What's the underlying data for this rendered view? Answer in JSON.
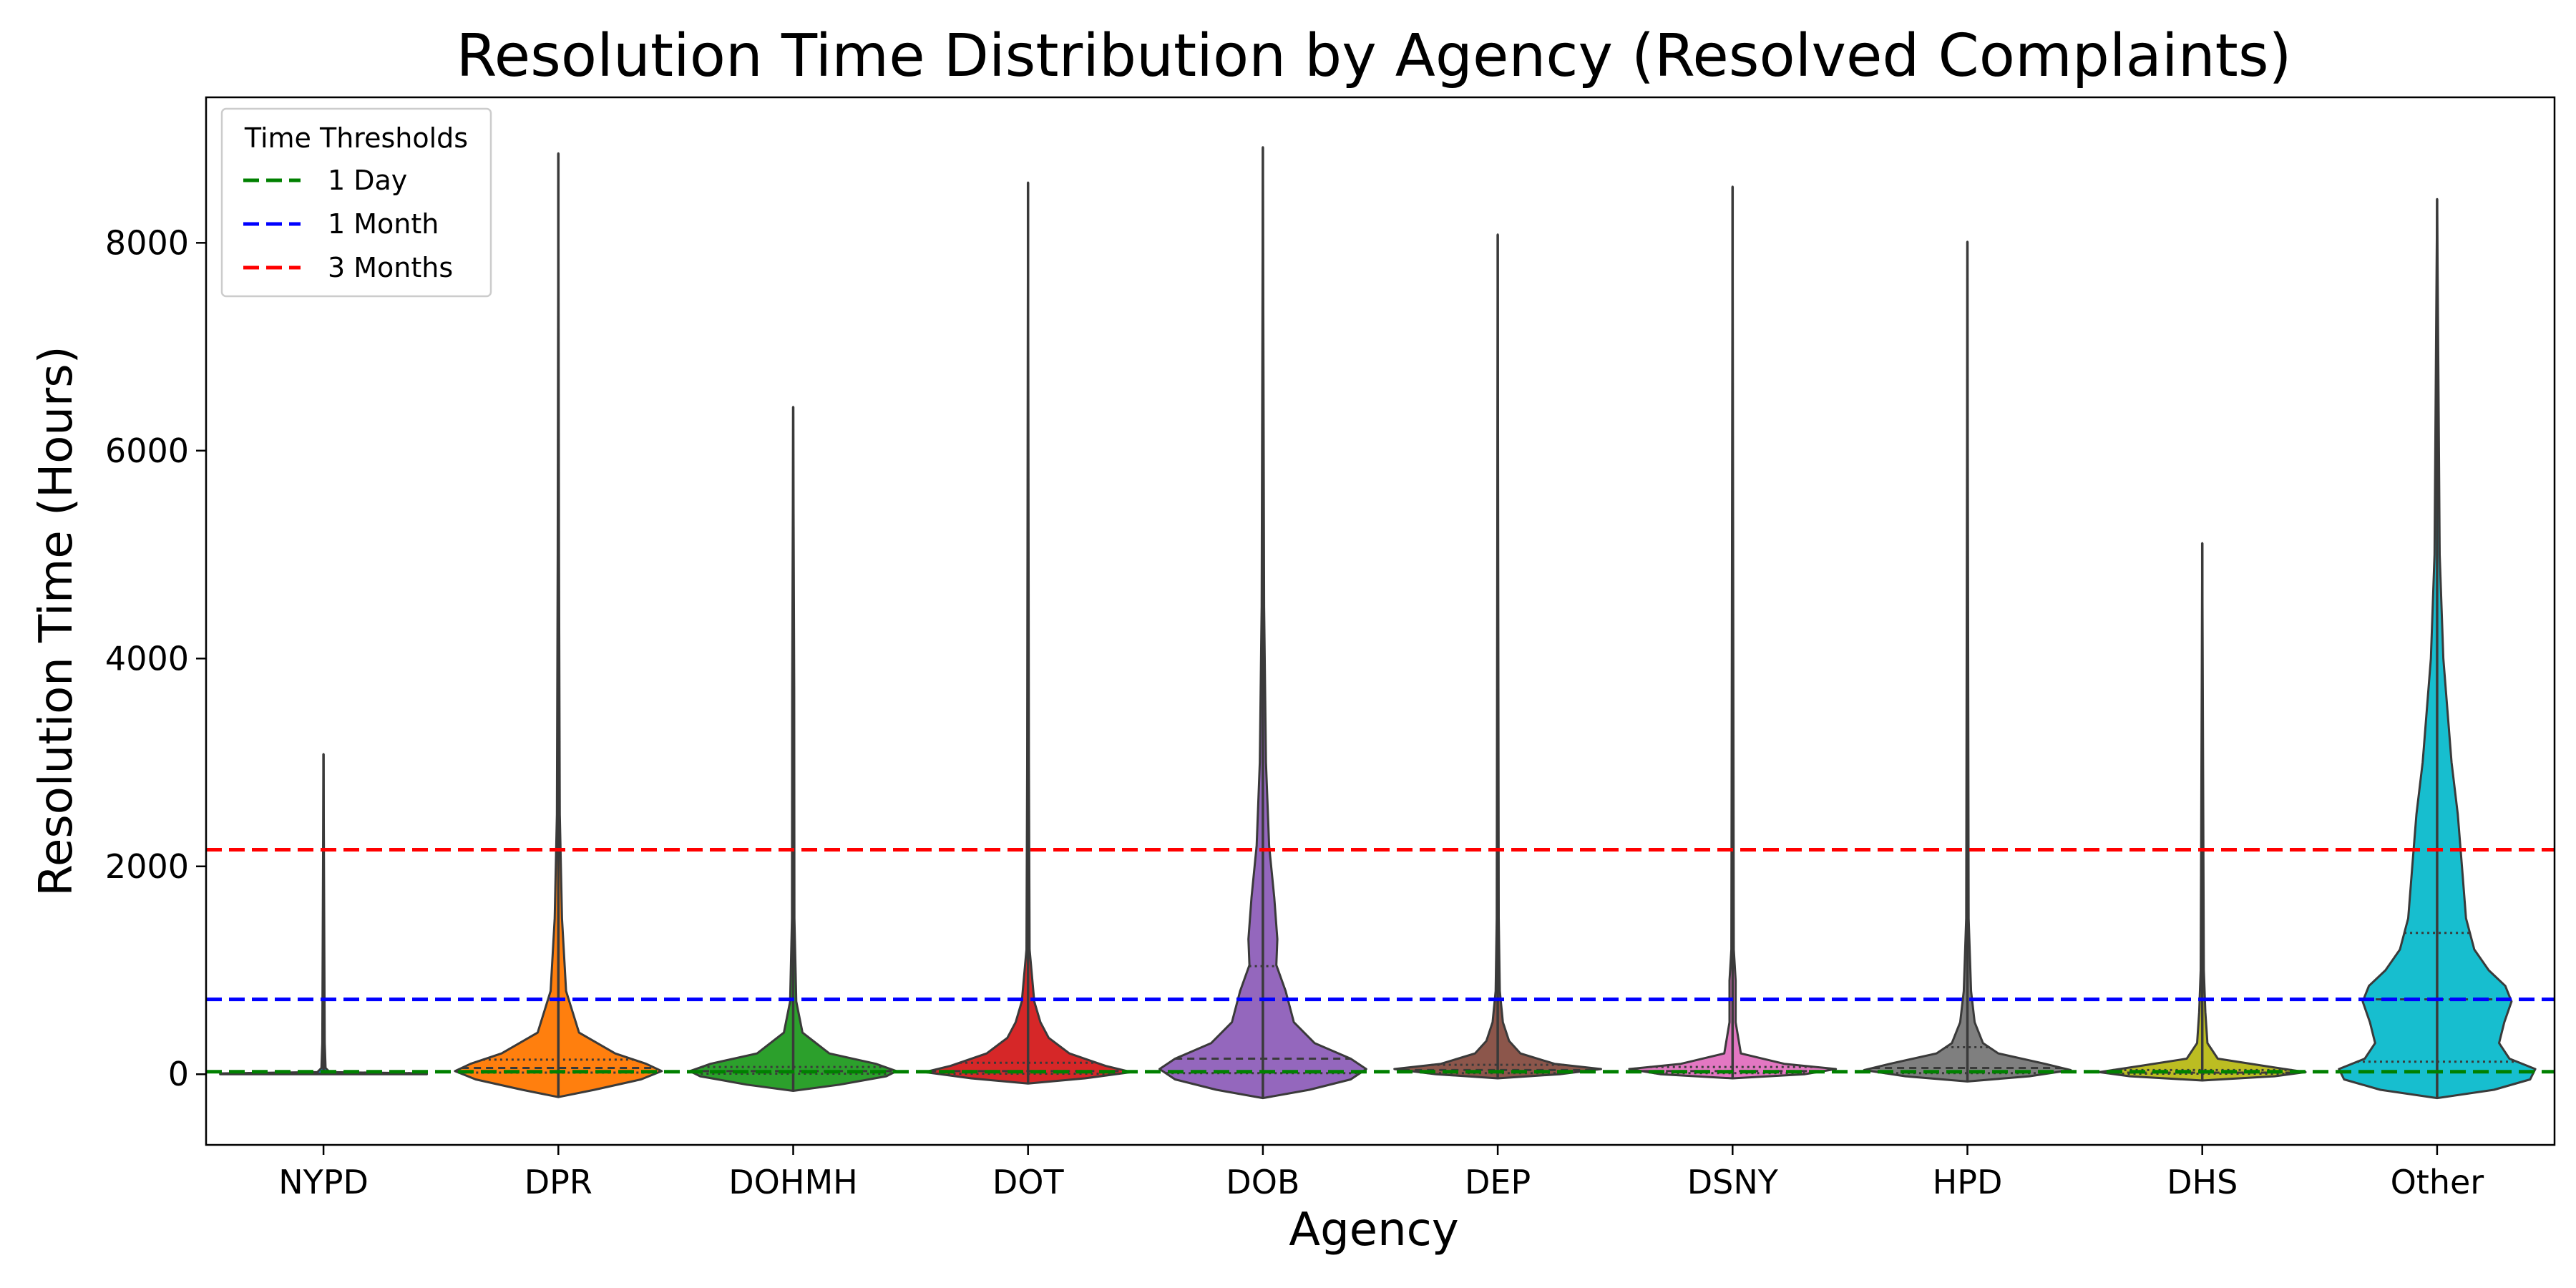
{
  "chart_data": {
    "type": "violin",
    "title": "Resolution Time Distribution by Agency (Resolved Complaints)",
    "xlabel": "Agency",
    "ylabel": "Resolution Time (Hours)",
    "ylim": [
      -680,
      9400
    ],
    "yticks": [
      0,
      2000,
      4000,
      6000,
      8000
    ],
    "grid": false,
    "legend": {
      "title": "Time Thresholds",
      "placement": "top-left",
      "entries": [
        {
          "label": "1 Day",
          "color": "#008000",
          "value": 24
        },
        {
          "label": "1 Month",
          "color": "#0000ff",
          "value": 720
        },
        {
          "label": "3 Months",
          "color": "#ff0000",
          "value": 2160
        }
      ]
    },
    "categories": [
      "NYPD",
      "DPR",
      "DOHMH",
      "DOT",
      "DOB",
      "DEP",
      "DSNY",
      "HPD",
      "DHS",
      "Other"
    ],
    "series": [
      {
        "category": "NYPD",
        "color": "#1f77b4",
        "min": 0,
        "max": 3080,
        "q1": 2,
        "median": 5,
        "q3": 10,
        "profile": [
          [
            0,
            1.0
          ],
          [
            8,
            1.0
          ],
          [
            20,
            0.06
          ],
          [
            60,
            0.02
          ],
          [
            300,
            0.012
          ],
          [
            3080,
            0.0
          ]
        ]
      },
      {
        "category": "DPR",
        "color": "#ff7f0e",
        "min": -220,
        "max": 8860,
        "q1": 15,
        "median": 60,
        "q3": 140,
        "profile": [
          [
            -220,
            0.0
          ],
          [
            -150,
            0.35
          ],
          [
            -50,
            0.8
          ],
          [
            30,
            1.0
          ],
          [
            100,
            0.85
          ],
          [
            200,
            0.55
          ],
          [
            400,
            0.2
          ],
          [
            800,
            0.075
          ],
          [
            1500,
            0.035
          ],
          [
            2500,
            0.014
          ],
          [
            5000,
            0.006
          ],
          [
            8860,
            0.0
          ]
        ]
      },
      {
        "category": "DOHMH",
        "color": "#2ca02c",
        "min": -160,
        "max": 6420,
        "q1": 5,
        "median": 30,
        "q3": 70,
        "profile": [
          [
            -160,
            0.0
          ],
          [
            -100,
            0.45
          ],
          [
            -20,
            0.9
          ],
          [
            30,
            1.0
          ],
          [
            100,
            0.8
          ],
          [
            200,
            0.35
          ],
          [
            400,
            0.09
          ],
          [
            700,
            0.03
          ],
          [
            1500,
            0.012
          ],
          [
            3700,
            0.01
          ],
          [
            6420,
            0.0
          ]
        ]
      },
      {
        "category": "DOT",
        "color": "#d62728",
        "min": -90,
        "max": 8580,
        "q1": 5,
        "median": 30,
        "q3": 110,
        "profile": [
          [
            -90,
            0.0
          ],
          [
            -40,
            0.55
          ],
          [
            20,
            1.0
          ],
          [
            80,
            0.75
          ],
          [
            200,
            0.4
          ],
          [
            350,
            0.2
          ],
          [
            500,
            0.12
          ],
          [
            700,
            0.06
          ],
          [
            1200,
            0.015
          ],
          [
            3000,
            0.008
          ],
          [
            8580,
            0.0
          ]
        ]
      },
      {
        "category": "DOB",
        "color": "#9467bd",
        "min": -230,
        "max": 8920,
        "q1": 10,
        "median": 150,
        "q3": 1040,
        "profile": [
          [
            -230,
            0.0
          ],
          [
            -150,
            0.45
          ],
          [
            -50,
            0.85
          ],
          [
            50,
            1.0
          ],
          [
            150,
            0.85
          ],
          [
            300,
            0.5
          ],
          [
            500,
            0.3
          ],
          [
            800,
            0.22
          ],
          [
            1050,
            0.13
          ],
          [
            1300,
            0.14
          ],
          [
            1700,
            0.11
          ],
          [
            2200,
            0.06
          ],
          [
            3000,
            0.03
          ],
          [
            4500,
            0.012
          ],
          [
            8920,
            0.0
          ]
        ]
      },
      {
        "category": "DEP",
        "color": "#8c564b",
        "min": -40,
        "max": 8080,
        "q1": 10,
        "median": 40,
        "q3": 90,
        "profile": [
          [
            -40,
            0.0
          ],
          [
            0,
            0.6
          ],
          [
            50,
            1.0
          ],
          [
            100,
            0.55
          ],
          [
            200,
            0.22
          ],
          [
            320,
            0.11
          ],
          [
            500,
            0.05
          ],
          [
            800,
            0.02
          ],
          [
            1500,
            0.01
          ],
          [
            8080,
            0.0
          ]
        ]
      },
      {
        "category": "DSNY",
        "color": "#e377c2",
        "min": -40,
        "max": 8540,
        "q1": 10,
        "median": 30,
        "q3": 70,
        "profile": [
          [
            -40,
            0.0
          ],
          [
            0,
            0.7
          ],
          [
            50,
            1.0
          ],
          [
            100,
            0.5
          ],
          [
            200,
            0.08
          ],
          [
            500,
            0.03
          ],
          [
            900,
            0.03
          ],
          [
            1200,
            0.012
          ],
          [
            8540,
            0.0
          ]
        ]
      },
      {
        "category": "HPD",
        "color": "#7f7f7f",
        "min": -70,
        "max": 8010,
        "q1": 10,
        "median": 60,
        "q3": 260,
        "profile": [
          [
            -70,
            0.0
          ],
          [
            -20,
            0.6
          ],
          [
            40,
            1.0
          ],
          [
            100,
            0.75
          ],
          [
            200,
            0.3
          ],
          [
            300,
            0.15
          ],
          [
            500,
            0.07
          ],
          [
            800,
            0.035
          ],
          [
            1500,
            0.012
          ],
          [
            8010,
            0.0
          ]
        ]
      },
      {
        "category": "DHS",
        "color": "#bcbd22",
        "min": -60,
        "max": 5110,
        "q1": 5,
        "median": 15,
        "q3": 40,
        "profile": [
          [
            -60,
            0.0
          ],
          [
            -20,
            0.7
          ],
          [
            20,
            1.0
          ],
          [
            80,
            0.6
          ],
          [
            150,
            0.15
          ],
          [
            300,
            0.05
          ],
          [
            600,
            0.03
          ],
          [
            1000,
            0.015
          ],
          [
            5110,
            0.0
          ]
        ]
      },
      {
        "category": "Other",
        "color": "#17becf",
        "min": -230,
        "max": 8420,
        "q1": 120,
        "median": 720,
        "q3": 1360,
        "profile": [
          [
            -230,
            0.0
          ],
          [
            -150,
            0.55
          ],
          [
            -50,
            0.9
          ],
          [
            50,
            0.95
          ],
          [
            150,
            0.7
          ],
          [
            300,
            0.6
          ],
          [
            500,
            0.65
          ],
          [
            700,
            0.72
          ],
          [
            850,
            0.66
          ],
          [
            1000,
            0.5
          ],
          [
            1200,
            0.36
          ],
          [
            1500,
            0.28
          ],
          [
            2000,
            0.24
          ],
          [
            2500,
            0.2
          ],
          [
            3000,
            0.14
          ],
          [
            4000,
            0.06
          ],
          [
            5000,
            0.025
          ],
          [
            8420,
            0.0
          ]
        ]
      }
    ]
  }
}
